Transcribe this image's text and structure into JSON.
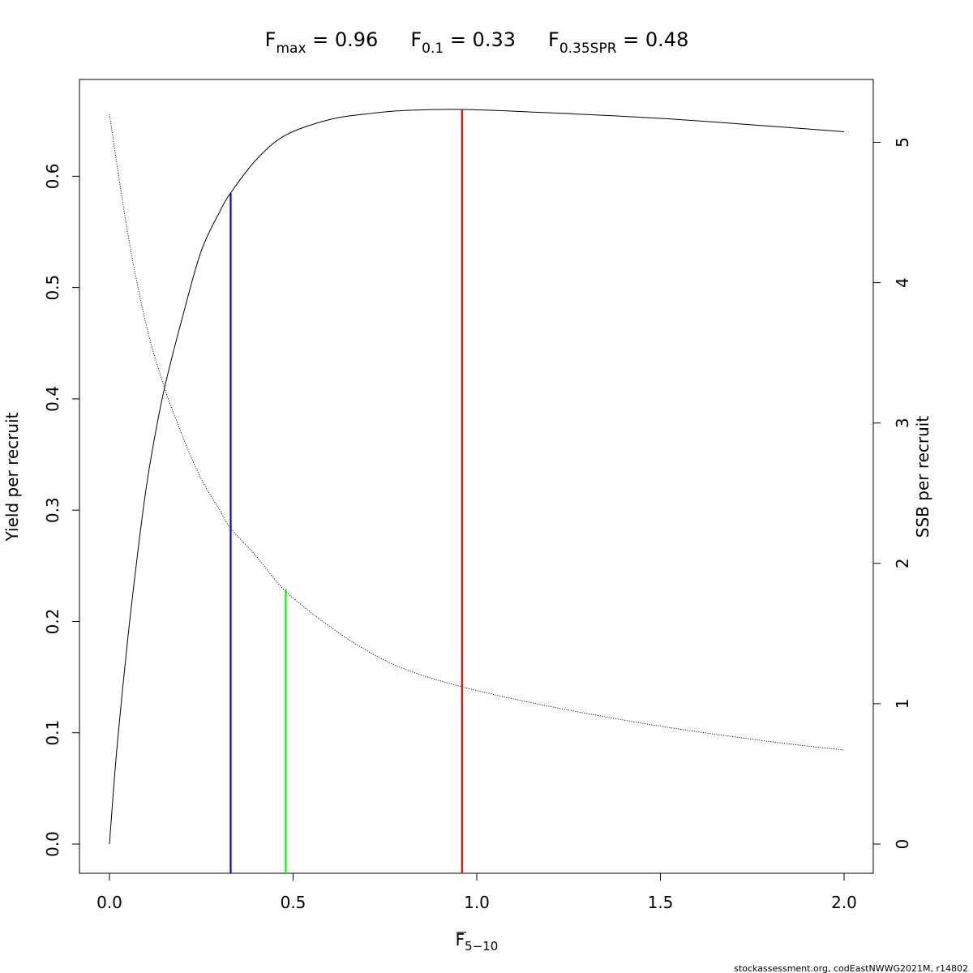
{
  "title": {
    "fmax": {
      "base": "F",
      "sub": "max",
      "value": " = 0.96"
    },
    "f01": {
      "base": "F",
      "sub": "0.1",
      "value": " = 0.33"
    },
    "fspr": {
      "base": "F",
      "sub": "0.35SPR",
      "value": " = 0.48"
    }
  },
  "xlabel": {
    "base": "F",
    "sub": "5−10"
  },
  "ylabel_left": "Yield per recruit",
  "ylabel_right": "SSB per recruit",
  "footer": "stockassessment.org, codEastNWWG2021M, r14802",
  "colors": {
    "fmax": "#ff0000",
    "f01": "#0000ff",
    "fspr": "#00ff00",
    "curve": "#000000"
  },
  "chart_data": {
    "type": "line",
    "xlim": [
      0,
      2
    ],
    "ylim_left": [
      0,
      0.66
    ],
    "ylim_right": [
      0,
      5.2
    ],
    "x_ticks": [
      "0.0",
      "0.5",
      "1.0",
      "1.5",
      "2.0"
    ],
    "y_left_ticks": [
      "0.0",
      "0.1",
      "0.2",
      "0.3",
      "0.4",
      "0.5",
      "0.6"
    ],
    "y_right_ticks": [
      "0",
      "1",
      "2",
      "3",
      "4",
      "5"
    ],
    "series": [
      {
        "axis": "left",
        "style": "solid",
        "x": [
          0,
          0.02,
          0.05,
          0.08,
          0.1,
          0.12,
          0.15,
          0.2,
          0.25,
          0.3,
          0.33,
          0.4,
          0.48,
          0.6,
          0.7,
          0.8,
          0.96,
          1.2,
          1.5,
          1.8,
          2.0
        ],
        "y": [
          0,
          0.085,
          0.185,
          0.27,
          0.32,
          0.36,
          0.41,
          0.475,
          0.533,
          0.568,
          0.585,
          0.615,
          0.637,
          0.651,
          0.656,
          0.659,
          0.66,
          0.657,
          0.652,
          0.645,
          0.64
        ]
      },
      {
        "axis": "right",
        "style": "dotted",
        "x": [
          0,
          0.05,
          0.1,
          0.15,
          0.2,
          0.25,
          0.3,
          0.33,
          0.4,
          0.48,
          0.6,
          0.7,
          0.8,
          0.96,
          1.2,
          1.5,
          1.8,
          2.0
        ],
        "y": [
          5.2,
          4.35,
          3.7,
          3.25,
          2.9,
          2.6,
          2.38,
          2.25,
          2.05,
          1.8,
          1.55,
          1.38,
          1.25,
          1.12,
          0.98,
          0.84,
          0.73,
          0.67
        ]
      }
    ],
    "reference_lines": [
      {
        "key": "f01",
        "x": 0.33,
        "y_top": 0.585
      },
      {
        "key": "fspr",
        "x": 0.48,
        "y_top": 0.229
      },
      {
        "key": "fmax",
        "x": 0.96,
        "y_top": 0.66
      }
    ]
  }
}
